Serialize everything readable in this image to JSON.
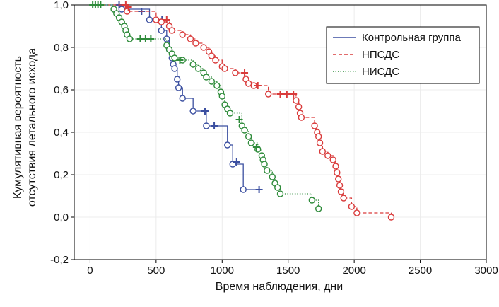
{
  "chart_data": {
    "type": "line",
    "subtype": "kaplan-meier survival curves",
    "xlabel": "Время наблюдения, дни",
    "ylabel_lines": [
      "Кумулятивная вероятность",
      "отсутствия летального исхода"
    ],
    "xlim": [
      -120,
      3000
    ],
    "ylim": [
      -0.2,
      1.0
    ],
    "xticks": [
      0,
      500,
      1000,
      1500,
      2000,
      2500,
      3000
    ],
    "yticks": [
      -0.2,
      0.0,
      0.2,
      0.4,
      0.6,
      0.8,
      1.0
    ],
    "ytick_labels": [
      "-0,2",
      "0,0",
      "0,2",
      "0,4",
      "0,6",
      "0,8",
      "1,0"
    ],
    "xtick_labels": [
      "0",
      "500",
      "1000",
      "1500",
      "2000",
      "2500",
      "3000"
    ],
    "grid": true,
    "legend_position": "top-right",
    "markers": {
      "event": "circle",
      "censored": "plus"
    },
    "series": [
      {
        "name": "Контрольная группа",
        "color": "#3b4fa0",
        "line_style": "solid",
        "steps": [
          [
            0,
            1.0
          ],
          [
            240,
            0.98
          ],
          [
            450,
            0.93
          ],
          [
            540,
            0.88
          ],
          [
            580,
            0.84
          ],
          [
            600,
            0.79
          ],
          [
            620,
            0.75
          ],
          [
            630,
            0.72
          ],
          [
            640,
            0.7
          ],
          [
            660,
            0.65
          ],
          [
            670,
            0.61
          ],
          [
            700,
            0.56
          ],
          [
            780,
            0.5
          ],
          [
            880,
            0.43
          ],
          [
            1040,
            0.34
          ],
          [
            1080,
            0.25
          ],
          [
            1160,
            0.13
          ],
          [
            1280,
            0.13
          ]
        ],
        "events": [
          [
            240,
            0.98
          ],
          [
            450,
            0.93
          ],
          [
            540,
            0.88
          ],
          [
            580,
            0.84
          ],
          [
            600,
            0.79
          ],
          [
            620,
            0.75
          ],
          [
            630,
            0.72
          ],
          [
            640,
            0.7
          ],
          [
            660,
            0.65
          ],
          [
            670,
            0.61
          ],
          [
            700,
            0.56
          ],
          [
            780,
            0.5
          ],
          [
            880,
            0.43
          ],
          [
            1040,
            0.34
          ],
          [
            1080,
            0.25
          ],
          [
            1160,
            0.13
          ]
        ],
        "censored": [
          [
            220,
            1.0
          ],
          [
            390,
            0.97
          ],
          [
            545,
            0.93
          ],
          [
            870,
            0.5
          ],
          [
            940,
            0.43
          ],
          [
            1110,
            0.26
          ],
          [
            1280,
            0.13
          ]
        ]
      },
      {
        "name": "НПСДС",
        "color": "#d93b3b",
        "line_style": "dashed",
        "steps": [
          [
            0,
            1.0
          ],
          [
            280,
            0.97
          ],
          [
            500,
            0.93
          ],
          [
            540,
            0.92
          ],
          [
            600,
            0.9
          ],
          [
            620,
            0.88
          ],
          [
            700,
            0.86
          ],
          [
            760,
            0.84
          ],
          [
            800,
            0.82
          ],
          [
            860,
            0.8
          ],
          [
            900,
            0.78
          ],
          [
            920,
            0.76
          ],
          [
            950,
            0.74
          ],
          [
            1000,
            0.71
          ],
          [
            1020,
            0.7
          ],
          [
            1100,
            0.68
          ],
          [
            1180,
            0.65
          ],
          [
            1200,
            0.63
          ],
          [
            1240,
            0.62
          ],
          [
            1350,
            0.58
          ],
          [
            1560,
            0.55
          ],
          [
            1580,
            0.52
          ],
          [
            1590,
            0.49
          ],
          [
            1600,
            0.47
          ],
          [
            1700,
            0.43
          ],
          [
            1720,
            0.4
          ],
          [
            1730,
            0.38
          ],
          [
            1740,
            0.35
          ],
          [
            1760,
            0.31
          ],
          [
            1800,
            0.29
          ],
          [
            1840,
            0.27
          ],
          [
            1860,
            0.24
          ],
          [
            1870,
            0.21
          ],
          [
            1880,
            0.18
          ],
          [
            1890,
            0.15
          ],
          [
            1900,
            0.12
          ],
          [
            1920,
            0.09
          ],
          [
            1980,
            0.05
          ],
          [
            2020,
            0.02
          ],
          [
            2280,
            0.0
          ]
        ],
        "events": [
          [
            280,
            0.97
          ],
          [
            500,
            0.93
          ],
          [
            540,
            0.92
          ],
          [
            600,
            0.9
          ],
          [
            620,
            0.88
          ],
          [
            700,
            0.86
          ],
          [
            760,
            0.84
          ],
          [
            800,
            0.82
          ],
          [
            860,
            0.8
          ],
          [
            900,
            0.78
          ],
          [
            920,
            0.76
          ],
          [
            950,
            0.74
          ],
          [
            1000,
            0.71
          ],
          [
            1020,
            0.7
          ],
          [
            1100,
            0.68
          ],
          [
            1180,
            0.65
          ],
          [
            1200,
            0.63
          ],
          [
            1240,
            0.62
          ],
          [
            1350,
            0.58
          ],
          [
            1560,
            0.55
          ],
          [
            1580,
            0.52
          ],
          [
            1590,
            0.49
          ],
          [
            1600,
            0.47
          ],
          [
            1700,
            0.43
          ],
          [
            1720,
            0.4
          ],
          [
            1730,
            0.38
          ],
          [
            1740,
            0.35
          ],
          [
            1760,
            0.31
          ],
          [
            1800,
            0.29
          ],
          [
            1840,
            0.27
          ],
          [
            1860,
            0.24
          ],
          [
            1870,
            0.21
          ],
          [
            1880,
            0.18
          ],
          [
            1890,
            0.15
          ],
          [
            1900,
            0.12
          ],
          [
            1920,
            0.09
          ],
          [
            1980,
            0.05
          ],
          [
            2020,
            0.02
          ],
          [
            2280,
            0.0
          ]
        ],
        "censored": [
          [
            270,
            1.0
          ],
          [
            290,
            0.99
          ],
          [
            580,
            0.93
          ],
          [
            1170,
            0.68
          ],
          [
            1270,
            0.62
          ],
          [
            1440,
            0.58
          ],
          [
            1490,
            0.58
          ],
          [
            1540,
            0.58
          ]
        ]
      },
      {
        "name": "НИСДС",
        "color": "#2e8b3a",
        "line_style": "dotted",
        "steps": [
          [
            0,
            1.0
          ],
          [
            180,
            0.98
          ],
          [
            200,
            0.96
          ],
          [
            220,
            0.94
          ],
          [
            240,
            0.92
          ],
          [
            260,
            0.9
          ],
          [
            270,
            0.88
          ],
          [
            280,
            0.86
          ],
          [
            300,
            0.84
          ],
          [
            580,
            0.81
          ],
          [
            600,
            0.79
          ],
          [
            620,
            0.77
          ],
          [
            640,
            0.75
          ],
          [
            700,
            0.74
          ],
          [
            780,
            0.72
          ],
          [
            820,
            0.7
          ],
          [
            860,
            0.68
          ],
          [
            880,
            0.66
          ],
          [
            920,
            0.64
          ],
          [
            960,
            0.62
          ],
          [
            990,
            0.59
          ],
          [
            1000,
            0.57
          ],
          [
            1020,
            0.53
          ],
          [
            1040,
            0.51
          ],
          [
            1060,
            0.49
          ],
          [
            1150,
            0.43
          ],
          [
            1170,
            0.41
          ],
          [
            1200,
            0.38
          ],
          [
            1220,
            0.35
          ],
          [
            1270,
            0.32
          ],
          [
            1300,
            0.29
          ],
          [
            1310,
            0.27
          ],
          [
            1320,
            0.25
          ],
          [
            1340,
            0.22
          ],
          [
            1380,
            0.19
          ],
          [
            1400,
            0.16
          ],
          [
            1420,
            0.14
          ],
          [
            1440,
            0.11
          ],
          [
            1680,
            0.08
          ],
          [
            1730,
            0.04
          ]
        ],
        "events": [
          [
            180,
            0.98
          ],
          [
            200,
            0.96
          ],
          [
            220,
            0.94
          ],
          [
            240,
            0.92
          ],
          [
            260,
            0.9
          ],
          [
            270,
            0.88
          ],
          [
            280,
            0.86
          ],
          [
            300,
            0.84
          ],
          [
            580,
            0.81
          ],
          [
            600,
            0.79
          ],
          [
            620,
            0.77
          ],
          [
            640,
            0.75
          ],
          [
            700,
            0.74
          ],
          [
            780,
            0.72
          ],
          [
            820,
            0.7
          ],
          [
            860,
            0.68
          ],
          [
            880,
            0.66
          ],
          [
            920,
            0.64
          ],
          [
            960,
            0.62
          ],
          [
            990,
            0.59
          ],
          [
            1000,
            0.57
          ],
          [
            1020,
            0.53
          ],
          [
            1040,
            0.51
          ],
          [
            1060,
            0.49
          ],
          [
            1150,
            0.43
          ],
          [
            1170,
            0.41
          ],
          [
            1200,
            0.38
          ],
          [
            1220,
            0.35
          ],
          [
            1270,
            0.32
          ],
          [
            1300,
            0.29
          ],
          [
            1310,
            0.27
          ],
          [
            1320,
            0.25
          ],
          [
            1340,
            0.22
          ],
          [
            1380,
            0.19
          ],
          [
            1400,
            0.16
          ],
          [
            1420,
            0.14
          ],
          [
            1440,
            0.11
          ],
          [
            1680,
            0.08
          ],
          [
            1730,
            0.04
          ]
        ],
        "censored": [
          [
            20,
            1.0
          ],
          [
            40,
            1.0
          ],
          [
            60,
            1.0
          ],
          [
            80,
            1.0
          ],
          [
            380,
            0.84
          ],
          [
            420,
            0.84
          ],
          [
            460,
            0.84
          ],
          [
            680,
            0.74
          ],
          [
            1130,
            0.46
          ],
          [
            1260,
            0.33
          ]
        ]
      }
    ]
  }
}
